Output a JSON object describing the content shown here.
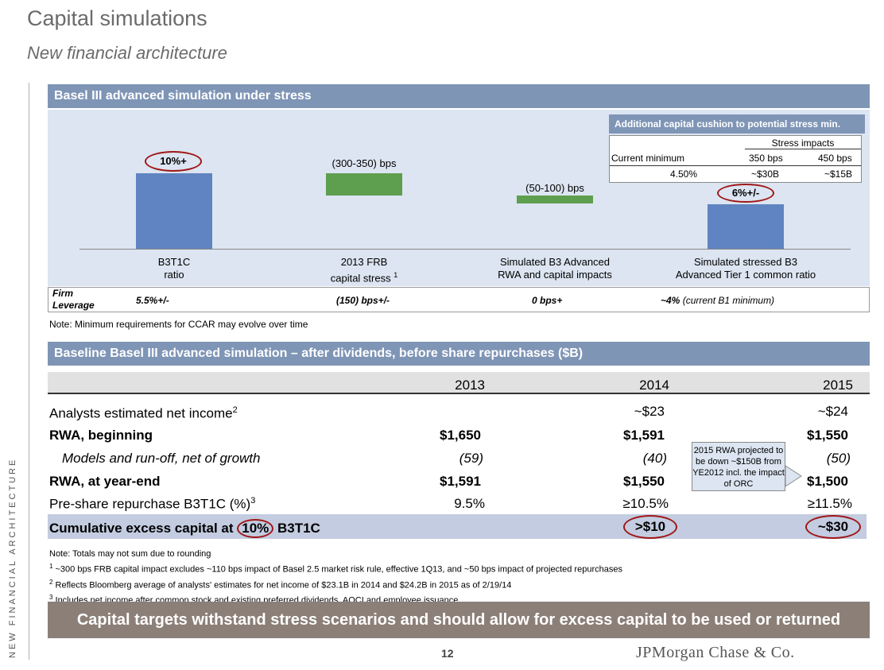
{
  "header": {
    "title": "Capital simulations",
    "subtitle": "New financial architecture"
  },
  "side_label": "NEW FINANCIAL ARCHITECTURE",
  "stress_section": {
    "title": "Basel III advanced simulation under stress",
    "bars": [
      {
        "value_label": "10%+",
        "label_line1": "B3T1C",
        "label_line2": "ratio",
        "color": "#5f84c1"
      },
      {
        "value_label": "(300-350) bps",
        "label_line1": "2013 FRB",
        "label_line2": "capital stress",
        "footnote": "1",
        "color": "#5e9e4f"
      },
      {
        "value_label": "(50-100) bps",
        "label_line1": "Simulated B3 Advanced",
        "label_line2": "RWA and capital impacts",
        "color": "#5e9e4f"
      },
      {
        "value_label": "6%+/-",
        "label_line1": "Simulated stressed B3",
        "label_line2": "Advanced Tier 1 common ratio",
        "color": "#5f84c1"
      }
    ],
    "cushion": {
      "title": "Additional capital cushion to potential stress min.",
      "group_header": "Stress impacts",
      "col_current": "Current minimum",
      "col_350": "350 bps",
      "col_450": "450 bps",
      "val_current": "4.50%",
      "val_350": "~$30B",
      "val_450": "~$15B"
    },
    "leverage": {
      "label_line1": "Firm",
      "label_line2": "Leverage",
      "v1": "5.5%+/-",
      "v2": "(150) bps+/-",
      "v3": "0 bps+",
      "v4_bold": "~4%",
      "v4_rest": "(current B1 minimum)"
    },
    "note": "Note: Minimum requirements for CCAR may evolve over time"
  },
  "baseline_section": {
    "title": "Baseline Basel III advanced simulation – after dividends, before share repurchases ($B)",
    "years": [
      "2013",
      "2014",
      "2015"
    ],
    "rows": [
      {
        "label": "Analysts estimated net income",
        "sup": "2",
        "values": [
          "",
          "~$23",
          "~$24"
        ]
      },
      {
        "label": "RWA, beginning",
        "values": [
          "$1,650",
          "$1,591",
          "$1,550"
        ]
      },
      {
        "label": "Models and run-off, net of growth",
        "values": [
          "(59)",
          "(40)",
          "(50)"
        ]
      },
      {
        "label": "RWA, at year-end",
        "values": [
          "$1,591",
          "$1,550",
          "$1,500"
        ]
      },
      {
        "label": "Pre-share repurchase B3T1C (%)",
        "sup": "3",
        "values": [
          "9.5%",
          "≥10.5%",
          "≥11.5%"
        ]
      },
      {
        "label_pre": "Cumulative excess capital at ",
        "label_circled": "10%",
        "label_post": " B3T1C",
        "values": [
          "",
          ">$10",
          "~$30"
        ]
      }
    ],
    "callout": "2015 RWA projected to be down ~$150B from YE2012 incl. the impact of ORC"
  },
  "footnotes": {
    "n0": "Note: Totals may not sum due to rounding",
    "n1_mark": "1",
    "n1": " ~300 bps FRB capital impact excludes ~110 bps impact of Basel 2.5 market risk rule, effective 1Q13, and ~50 bps impact of projected repurchases",
    "n2_mark": "2",
    "n2": " Reflects Bloomberg average of analysts' estimates for net income of $23.1B in 2014 and $24.2B in 2015 as of 2/19/14",
    "n3_mark": "3",
    "n3": " Includes net income after common stock and existing preferred dividends, AOCI and employee issuance"
  },
  "banner": "Capital targets withstand stress scenarios and should allow for excess capital to be used or returned",
  "page_number": "12",
  "logo": "JPMorgan Chase & Co."
}
